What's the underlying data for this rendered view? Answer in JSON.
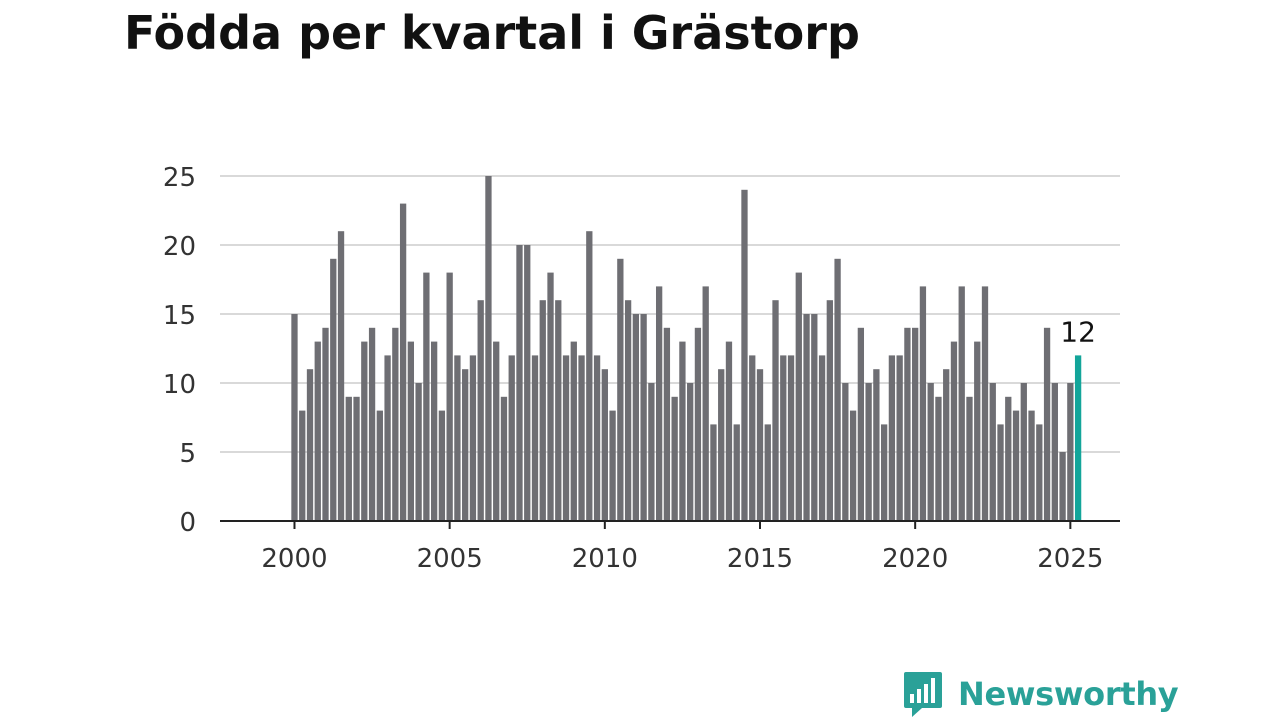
{
  "title": "Födda per kvartal i Grästorp",
  "brand": {
    "name": "Newsworthy",
    "icon": "newsworthy-logo-icon"
  },
  "colors": {
    "bar": "#6e6e73",
    "highlight": "#13a59a",
    "grid": "#d9d9d9",
    "axis": "#222222",
    "text": "#333333",
    "brand": "#2aa198"
  },
  "chart_data": {
    "type": "bar",
    "title": "Födda per kvartal i Grästorp",
    "xlabel": "",
    "ylabel": "",
    "x_start": 2000,
    "periods_per_year": 4,
    "xlim": [
      1997.6,
      2026.6
    ],
    "ylim": [
      0,
      25
    ],
    "yticks": [
      0,
      5,
      10,
      15,
      20,
      25
    ],
    "xticks": [
      2000,
      2005,
      2010,
      2015,
      2020,
      2025
    ],
    "grid": true,
    "legend": "none",
    "values": [
      15,
      8,
      11,
      13,
      14,
      19,
      21,
      9,
      9,
      13,
      14,
      8,
      12,
      14,
      23,
      13,
      10,
      18,
      13,
      8,
      18,
      12,
      11,
      12,
      16,
      25,
      13,
      9,
      12,
      20,
      20,
      12,
      16,
      18,
      16,
      12,
      13,
      12,
      21,
      12,
      11,
      8,
      19,
      16,
      15,
      15,
      10,
      17,
      14,
      9,
      13,
      10,
      14,
      17,
      7,
      11,
      13,
      7,
      24,
      12,
      11,
      7,
      16,
      12,
      12,
      18,
      15,
      15,
      12,
      16,
      19,
      10,
      8,
      14,
      10,
      11,
      7,
      12,
      12,
      14,
      14,
      17,
      10,
      9,
      11,
      13,
      17,
      9,
      13,
      17,
      10,
      7,
      9,
      8,
      10,
      8,
      7,
      14,
      10,
      5,
      10,
      12
    ],
    "highlight_index": 101,
    "highlight_label": "12"
  }
}
